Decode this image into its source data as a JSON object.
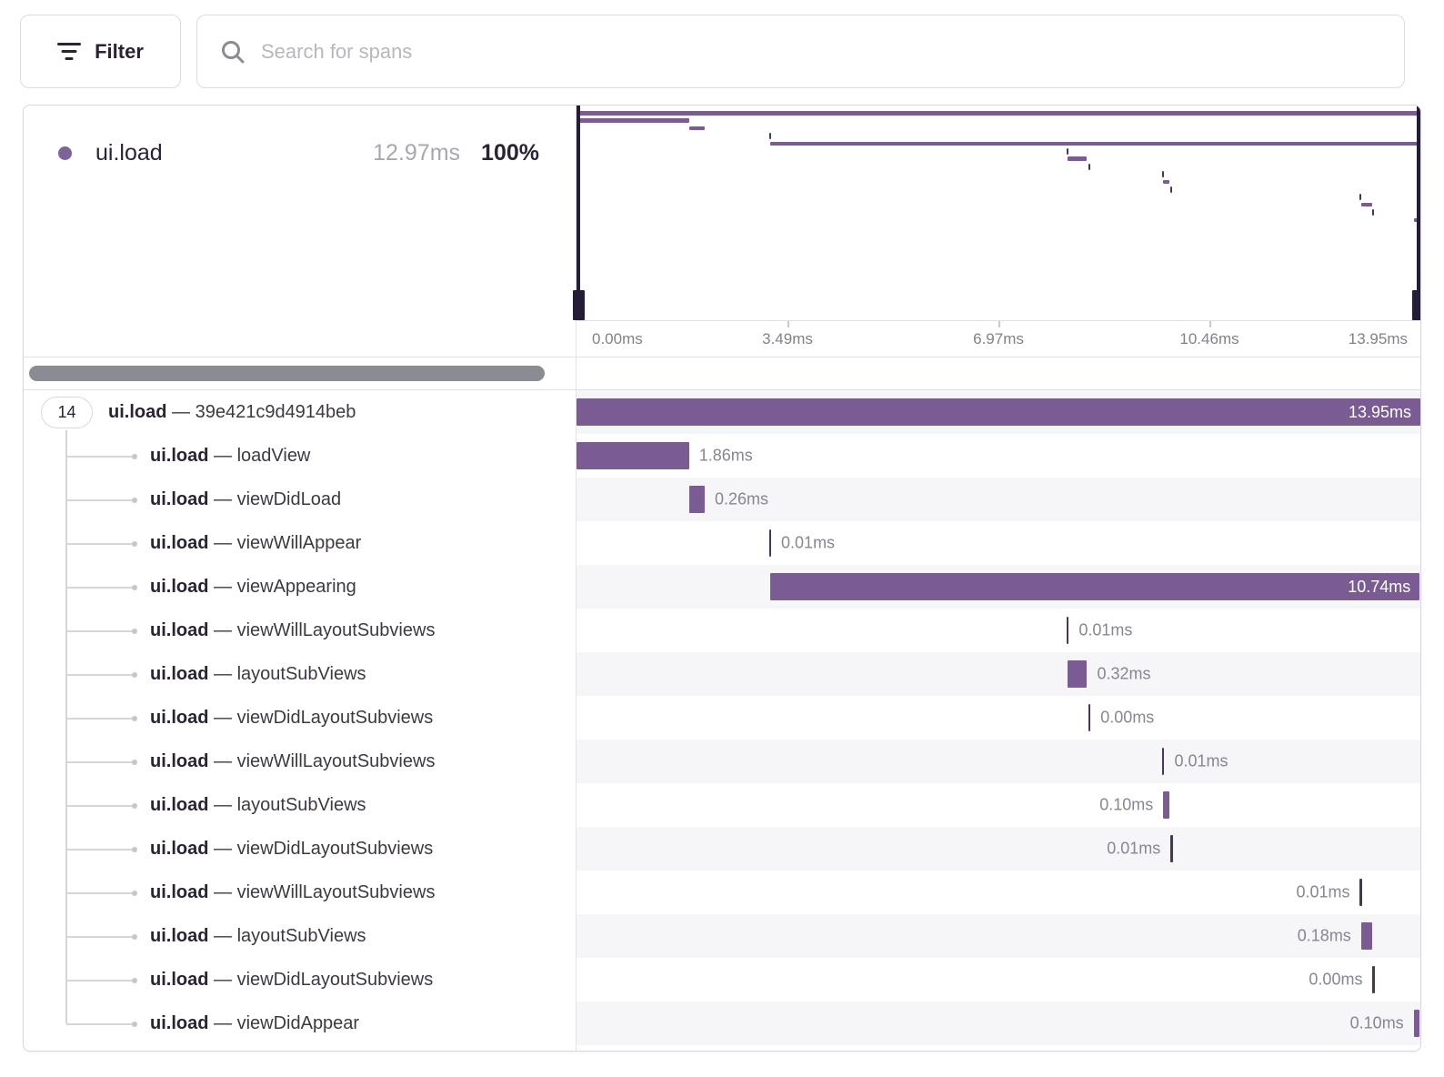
{
  "toolbar": {
    "filter_label": "Filter",
    "search_placeholder": "Search for spans"
  },
  "summary": {
    "op": "ui.load",
    "duration": "12.97ms",
    "percent": "100%"
  },
  "axis": {
    "total_ms": 13.95,
    "ticks": [
      "0.00ms",
      "3.49ms",
      "6.97ms",
      "10.46ms",
      "13.95ms"
    ]
  },
  "trace": {
    "root_badge_count": "14",
    "separator": "—",
    "spans": [
      {
        "op": "ui.load",
        "name": "39e421c9d4914beb",
        "start_ms": 0,
        "duration_ms": 13.95,
        "duration_label": "13.95ms",
        "label_side": "inside",
        "root": true
      },
      {
        "op": "ui.load",
        "name": "loadView",
        "start_ms": 0,
        "duration_ms": 1.86,
        "duration_label": "1.86ms",
        "label_side": "right"
      },
      {
        "op": "ui.load",
        "name": "viewDidLoad",
        "start_ms": 1.86,
        "duration_ms": 0.26,
        "duration_label": "0.26ms",
        "label_side": "right"
      },
      {
        "op": "ui.load",
        "name": "viewWillAppear",
        "start_ms": 3.18,
        "duration_ms": 0.01,
        "duration_label": "0.01ms",
        "label_side": "right"
      },
      {
        "op": "ui.load",
        "name": "viewAppearing",
        "start_ms": 3.2,
        "duration_ms": 10.74,
        "duration_label": "10.74ms",
        "label_side": "inside"
      },
      {
        "op": "ui.load",
        "name": "viewWillLayoutSubviews",
        "start_ms": 8.1,
        "duration_ms": 0.01,
        "duration_label": "0.01ms",
        "label_side": "right"
      },
      {
        "op": "ui.load",
        "name": "layoutSubViews",
        "start_ms": 8.12,
        "duration_ms": 0.32,
        "duration_label": "0.32ms",
        "label_side": "right"
      },
      {
        "op": "ui.load",
        "name": "viewDidLayoutSubviews",
        "start_ms": 8.46,
        "duration_ms": 0.0,
        "duration_label": "0.00ms",
        "label_side": "right"
      },
      {
        "op": "ui.load",
        "name": "viewWillLayoutSubviews",
        "start_ms": 9.68,
        "duration_ms": 0.01,
        "duration_label": "0.01ms",
        "label_side": "right"
      },
      {
        "op": "ui.load",
        "name": "layoutSubViews",
        "start_ms": 9.7,
        "duration_ms": 0.1,
        "duration_label": "0.10ms",
        "label_side": "left"
      },
      {
        "op": "ui.load",
        "name": "viewDidLayoutSubviews",
        "start_ms": 9.82,
        "duration_ms": 0.01,
        "duration_label": "0.01ms",
        "label_side": "left"
      },
      {
        "op": "ui.load",
        "name": "viewWillLayoutSubviews",
        "start_ms": 12.95,
        "duration_ms": 0.01,
        "duration_label": "0.01ms",
        "label_side": "left"
      },
      {
        "op": "ui.load",
        "name": "layoutSubViews",
        "start_ms": 12.97,
        "duration_ms": 0.18,
        "duration_label": "0.18ms",
        "label_side": "left"
      },
      {
        "op": "ui.load",
        "name": "viewDidLayoutSubviews",
        "start_ms": 13.16,
        "duration_ms": 0.0,
        "duration_label": "0.00ms",
        "label_side": "left"
      },
      {
        "op": "ui.load",
        "name": "viewDidAppear",
        "start_ms": 13.84,
        "duration_ms": 0.1,
        "duration_label": "0.10ms",
        "label_side": "left"
      }
    ]
  },
  "colors": {
    "span_bar": "#7a5c92",
    "span_tick": "#4a3758",
    "selection_handle": "#251c38",
    "accent_dot": "#7d639c",
    "row_stripe": "#f6f6f8"
  }
}
